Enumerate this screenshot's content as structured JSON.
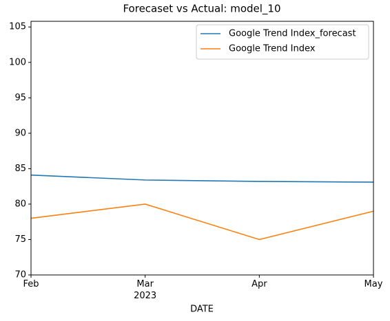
{
  "chart_data": {
    "type": "line",
    "title": "Forecaset vs Actual: model_10",
    "x_label": "DATE",
    "categories": [
      "Feb",
      "Mar\n2023",
      "Apr",
      "May"
    ],
    "series": [
      {
        "name": "Google Trend Index_forecast",
        "color": "#1f77b4",
        "values": [
          84.1,
          83.4,
          83.2,
          83.1
        ]
      },
      {
        "name": "Google Trend Index",
        "color": "#ff7f0e",
        "values": [
          78,
          80,
          75,
          79
        ]
      }
    ],
    "ylim": [
      70,
      105.8
    ],
    "yticks": [
      70,
      75,
      80,
      85,
      90,
      95,
      100,
      105
    ],
    "legend": "upper right"
  }
}
